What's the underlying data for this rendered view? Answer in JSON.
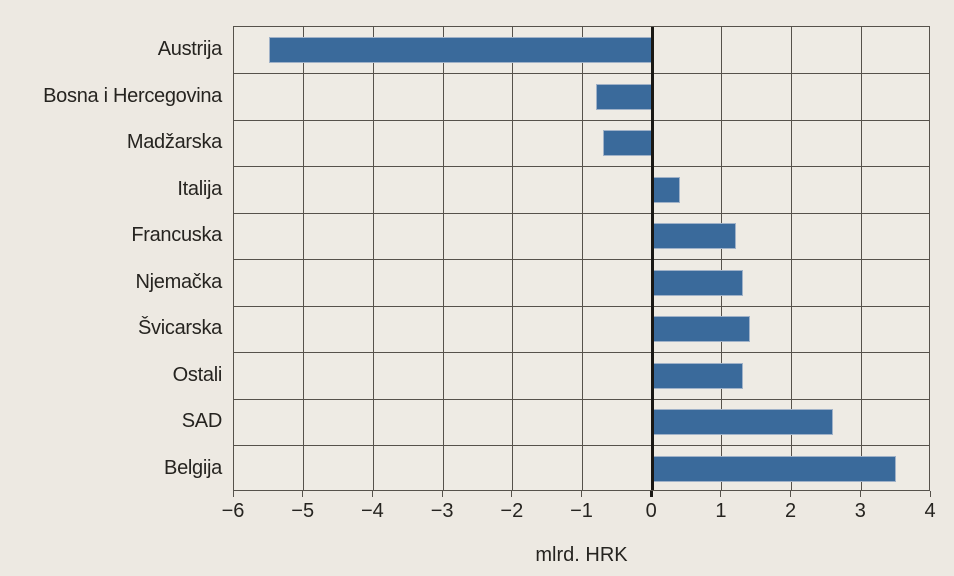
{
  "chart_data": {
    "type": "bar",
    "orientation": "horizontal",
    "title": "",
    "xlabel": "mlrd. HRK",
    "ylabel": "",
    "categories": [
      "Austrija",
      "Bosna i Hercegovina",
      "Madžarska",
      "Italija",
      "Francuska",
      "Njemačka",
      "Švicarska",
      "Ostali",
      "SAD",
      "Belgija"
    ],
    "values": [
      -5.5,
      -0.8,
      -0.7,
      0.4,
      1.2,
      1.3,
      1.4,
      1.3,
      2.6,
      3.5
    ],
    "xlim": [
      -6,
      4
    ],
    "xticks": [
      -6,
      -5,
      -4,
      -3,
      -2,
      -1,
      0,
      1,
      2,
      3,
      4
    ],
    "xtick_labels": [
      "−6",
      "−5",
      "−4",
      "−3",
      "−2",
      "−1",
      "0",
      "1",
      "2",
      "3",
      "4"
    ],
    "grid": true,
    "legend_position": "none",
    "colors": {
      "bar": "#3A6A9B",
      "bar_edge": "#A0B2C8",
      "background": "#EDE9E2",
      "plot_background": "#EEEBE4",
      "grid": "#56524B",
      "zero_line": "#1A1814",
      "text": "#262420"
    }
  }
}
